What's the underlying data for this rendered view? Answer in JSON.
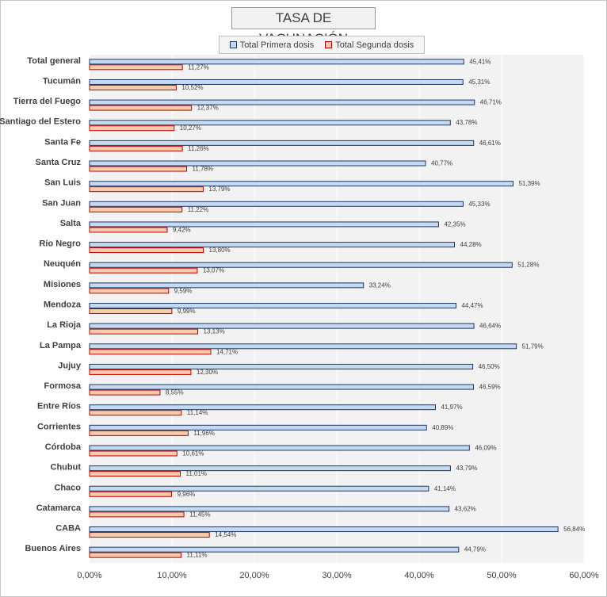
{
  "chart_data": {
    "type": "bar",
    "orientation": "horizontal",
    "title": "TASA DE VACUNACIÓN",
    "categories": [
      "Total general",
      "Tucumán",
      "Tierra del Fuego",
      "Santiago del Estero",
      "Santa Fe",
      "Santa Cruz",
      "San Luis",
      "San Juan",
      "Salta",
      "Río Negro",
      "Neuquén",
      "Misiones",
      "Mendoza",
      "La Rioja",
      "La Pampa",
      "Jujuy",
      "Formosa",
      "Entre Ríos",
      "Corrientes",
      "Córdoba",
      "Chubut",
      "Chaco",
      "Catamarca",
      "CABA",
      "Buenos Aires"
    ],
    "series": [
      {
        "name": "Total Primera dosis",
        "color": "#c5d9f1",
        "border": "#1f3864",
        "values": [
          45.41,
          45.31,
          46.71,
          43.78,
          46.61,
          40.77,
          51.39,
          45.33,
          42.35,
          44.28,
          51.28,
          33.24,
          44.47,
          46.64,
          51.79,
          46.5,
          46.59,
          41.97,
          40.89,
          46.09,
          43.79,
          41.14,
          43.62,
          56.84,
          44.79
        ],
        "labels": [
          "45,41%",
          "45,31%",
          "46,71%",
          "43,78%",
          "46,61%",
          "40,77%",
          "51,39%",
          "45,33%",
          "42,35%",
          "44,28%",
          "51,28%",
          "33,24%",
          "44,47%",
          "46,64%",
          "51,79%",
          "46,50%",
          "46,59%",
          "41,97%",
          "40,89%",
          "46,09%",
          "43,79%",
          "41,14%",
          "43,62%",
          "56,84%",
          "44,79%"
        ]
      },
      {
        "name": "Total Segunda dosis",
        "color": "#f8cbad",
        "border": "#c00000",
        "values": [
          11.27,
          10.52,
          12.37,
          10.27,
          11.26,
          11.78,
          13.79,
          11.22,
          9.42,
          13.8,
          13.07,
          9.59,
          9.99,
          13.13,
          14.71,
          12.3,
          8.55,
          11.14,
          11.96,
          10.61,
          11.01,
          9.96,
          11.45,
          14.54,
          11.11
        ],
        "labels": [
          "11,27%",
          "10,52%",
          "12,37%",
          "10,27%",
          "11,26%",
          "11,78%",
          "13,79%",
          "11,22%",
          "9,42%",
          "13,80%",
          "13,07%",
          "9,59%",
          "9,99%",
          "13,13%",
          "14,71%",
          "12,30%",
          "8,55%",
          "11,14%",
          "11,96%",
          "10,61%",
          "11,01%",
          "9,96%",
          "11,45%",
          "14,54%",
          "11,11%"
        ]
      }
    ],
    "xlim": [
      0,
      60
    ],
    "xticks": [
      0,
      10,
      20,
      30,
      40,
      50,
      60
    ],
    "xtick_labels": [
      "0,00%",
      "10,00%",
      "20,00%",
      "30,00%",
      "40,00%",
      "50,00%",
      "60,00%"
    ],
    "grid": true,
    "legend_position": "top",
    "plot_background": "#f2f2f2",
    "grid_color": "#ffffff"
  }
}
